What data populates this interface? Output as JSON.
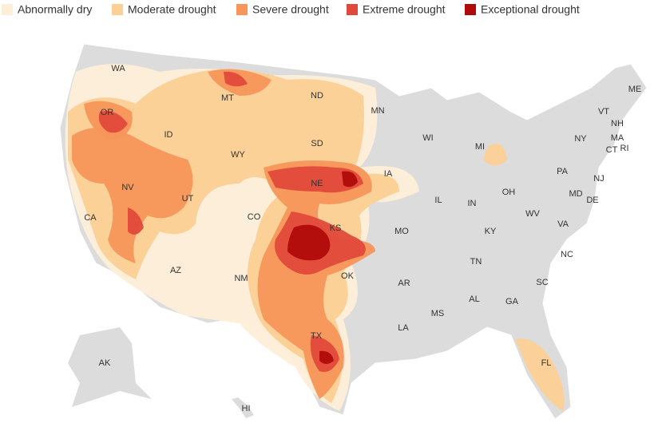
{
  "legend": [
    {
      "label": "Abnormally dry",
      "color": "#fdeed8"
    },
    {
      "label": "Moderate drought",
      "color": "#fccf95"
    },
    {
      "label": "Severe drought",
      "color": "#f7955a"
    },
    {
      "label": "Extreme drought",
      "color": "#e0493a"
    },
    {
      "label": "Exceptional drought",
      "color": "#b00a0a"
    }
  ],
  "states": [
    "WA",
    "OR",
    "CA",
    "NV",
    "ID",
    "MT",
    "WY",
    "UT",
    "AZ",
    "CO",
    "NM",
    "ND",
    "SD",
    "NE",
    "KS",
    "OK",
    "TX",
    "MN",
    "IA",
    "MO",
    "AR",
    "LA",
    "WI",
    "IL",
    "MS",
    "AL",
    "MI",
    "IN",
    "OH",
    "KY",
    "TN",
    "GA",
    "FL",
    "SC",
    "NC",
    "VA",
    "WV",
    "PA",
    "NY",
    "ME",
    "VT",
    "NH",
    "MA",
    "CT",
    "RI",
    "NJ",
    "MD",
    "DE",
    "AK",
    "HI"
  ]
}
